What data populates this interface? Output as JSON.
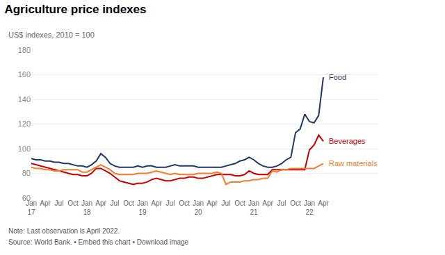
{
  "chart_data": {
    "type": "line",
    "title": "Agriculture price indexes",
    "subtitle": "US$ indexes, 2010 = 100",
    "annotations": [
      "Note: Last observation is April 2022.",
      "Source: World Bank. • Embed this chart • Download image"
    ],
    "categories": [
      "Jan\n17",
      null,
      null,
      "Apr",
      null,
      null,
      "Jul",
      null,
      null,
      "Oct",
      null,
      null,
      "Jan\n18",
      null,
      null,
      "Apr",
      null,
      null,
      "Jul",
      null,
      null,
      "Oct",
      null,
      null,
      "Jan\n19",
      null,
      null,
      "Apr",
      null,
      null,
      "Jul",
      null,
      null,
      "Oct",
      null,
      null,
      "Jan\n20",
      null,
      null,
      "Apr",
      null,
      null,
      "Jul",
      null,
      null,
      "Oct",
      null,
      null,
      "Jan\n21",
      null,
      null,
      "Apr",
      null,
      null,
      "Jul",
      null,
      null,
      "Oct",
      null,
      null,
      "Jan\n22",
      null,
      null,
      "Apr"
    ],
    "series": [
      {
        "name": "Food",
        "color": "#1f3864",
        "values": [
          92,
          91,
          91,
          90,
          90,
          89,
          89,
          88,
          88,
          87,
          86,
          86,
          85,
          87,
          90,
          96,
          93,
          88,
          86,
          85,
          85,
          85,
          85,
          86,
          85,
          86,
          86,
          85,
          85,
          85,
          86,
          87,
          86,
          86,
          86,
          86,
          85,
          85,
          85,
          85,
          85,
          85,
          86,
          87,
          88,
          90,
          91,
          93,
          91,
          88,
          86,
          85,
          85,
          86,
          88,
          91,
          93,
          113,
          116,
          128,
          122,
          121,
          127,
          158
        ]
      },
      {
        "name": "Beverages",
        "color": "#c00000",
        "values": [
          88,
          87,
          86,
          85,
          84,
          83,
          82,
          81,
          80,
          79,
          79,
          78,
          78,
          80,
          84,
          84,
          82,
          80,
          77,
          74,
          73,
          72,
          71,
          72,
          72,
          73,
          75,
          76,
          75,
          74,
          74,
          75,
          76,
          76,
          77,
          77,
          76,
          76,
          77,
          78,
          79,
          79,
          79,
          79,
          78,
          78,
          79,
          82,
          80,
          79,
          79,
          79,
          83,
          83,
          83,
          83,
          83,
          83,
          83,
          83,
          99,
          103,
          111,
          106
        ]
      },
      {
        "name": "Raw materials",
        "color": "#ed7d31",
        "values": [
          85,
          84,
          84,
          83,
          83,
          82,
          82,
          83,
          83,
          83,
          83,
          81,
          81,
          83,
          85,
          87,
          85,
          83,
          80,
          79,
          79,
          79,
          79,
          80,
          80,
          80,
          81,
          82,
          81,
          80,
          79,
          80,
          79,
          79,
          79,
          79,
          80,
          80,
          80,
          80,
          81,
          80,
          71,
          73,
          73,
          73,
          74,
          74,
          75,
          75,
          76,
          76,
          82,
          81,
          83,
          83,
          84,
          84,
          84,
          84,
          84,
          84,
          86,
          88
        ]
      }
    ],
    "ylim": [
      60,
      180
    ],
    "yticks": [
      60,
      80,
      100,
      120,
      140,
      160,
      180
    ],
    "grid": true
  }
}
